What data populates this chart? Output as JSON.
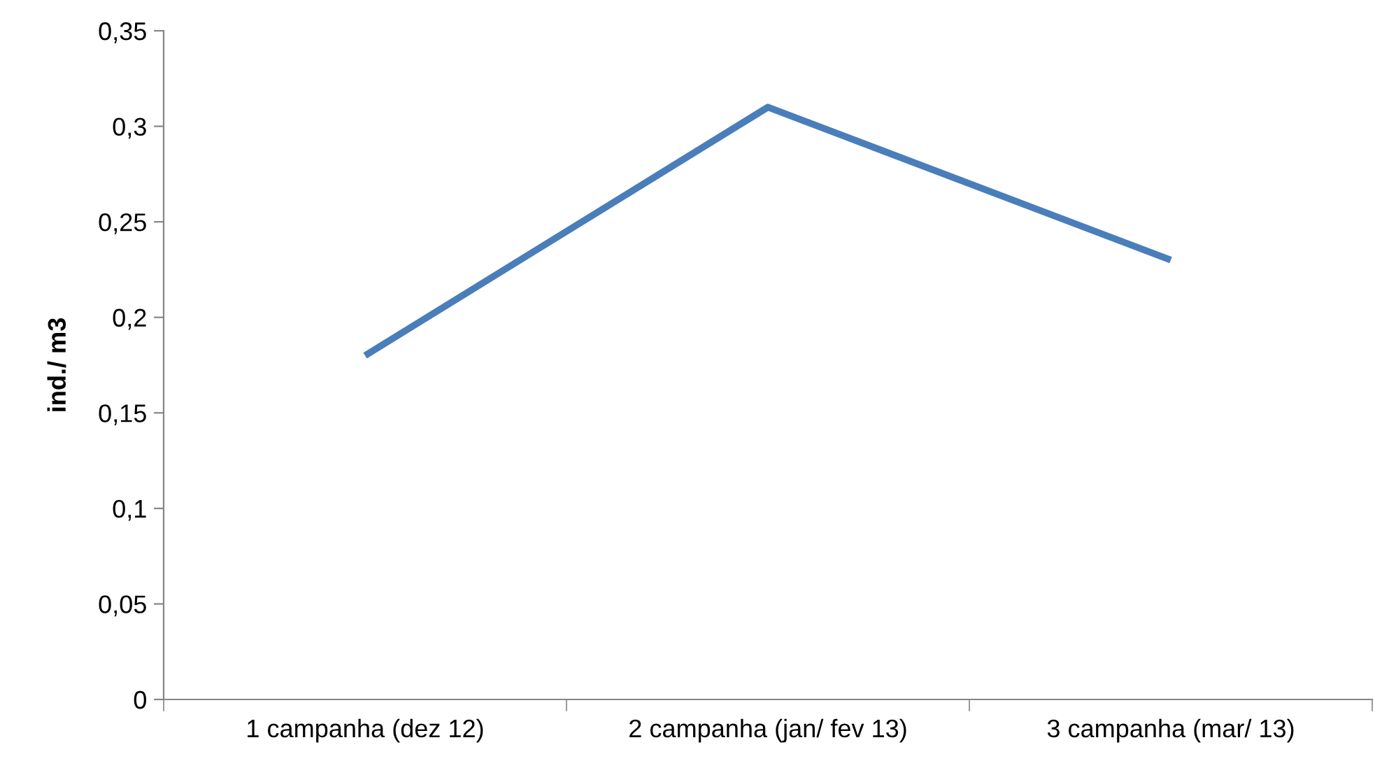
{
  "chart_data": {
    "type": "line",
    "ylabel": "ind./ m3",
    "categories": [
      "1 campanha (dez 12)",
      "2 campanha (jan/ fev 13)",
      "3 campanha (mar/ 13)"
    ],
    "series": [
      {
        "color": "#4a7ebb",
        "values": [
          0.18,
          0.31,
          0.23
        ]
      }
    ],
    "ylim": [
      0,
      0.35
    ],
    "yticks": [
      0,
      {
        "value": 0.05,
        "label": "0,05"
      },
      {
        "value": 0.1,
        "label": "0,1"
      },
      {
        "value": 0.15,
        "label": "0,15"
      },
      {
        "value": 0.2,
        "label": "0,2"
      },
      {
        "value": 0.25,
        "label": "0,25"
      },
      {
        "value": 0.3,
        "label": "0,3"
      },
      {
        "value": 0.35,
        "label": "0,35"
      }
    ],
    "grid": false,
    "legend": false,
    "marker": "none",
    "line_style": "solid"
  }
}
